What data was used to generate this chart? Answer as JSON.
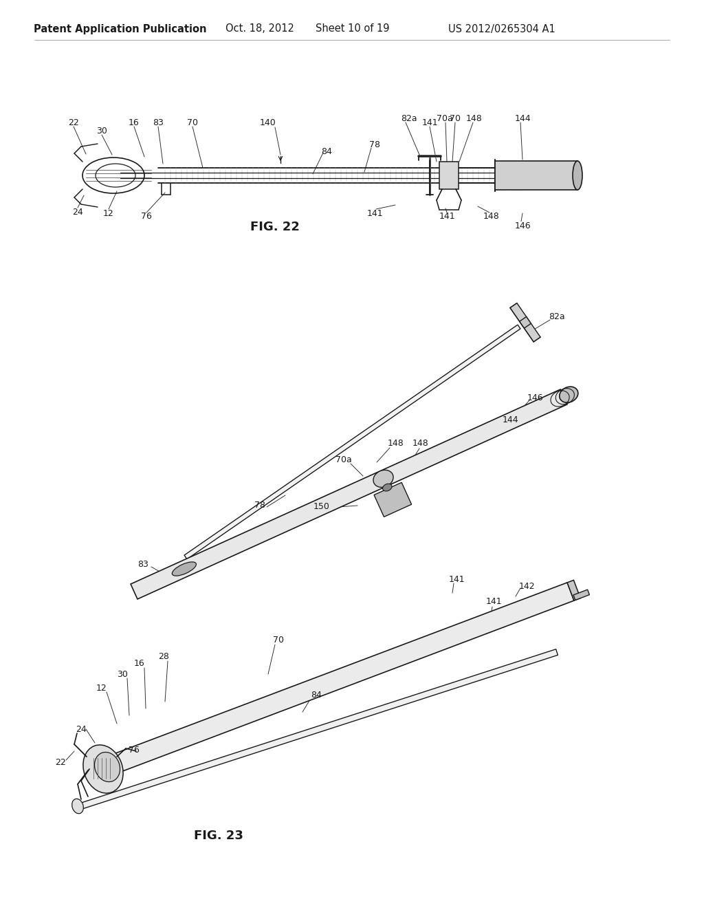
{
  "background_color": "#ffffff",
  "header_text": "Patent Application Publication",
  "header_date": "Oct. 18, 2012",
  "header_sheet": "Sheet 10 of 19",
  "header_patent": "US 2012/0265304 A1",
  "fig22_label": "FIG. 22",
  "fig23_label": "FIG. 23",
  "line_color": "#1a1a1a",
  "text_color": "#1a1a1a",
  "font_size_header": 10.5,
  "font_size_label": 9,
  "font_size_fig": 13
}
